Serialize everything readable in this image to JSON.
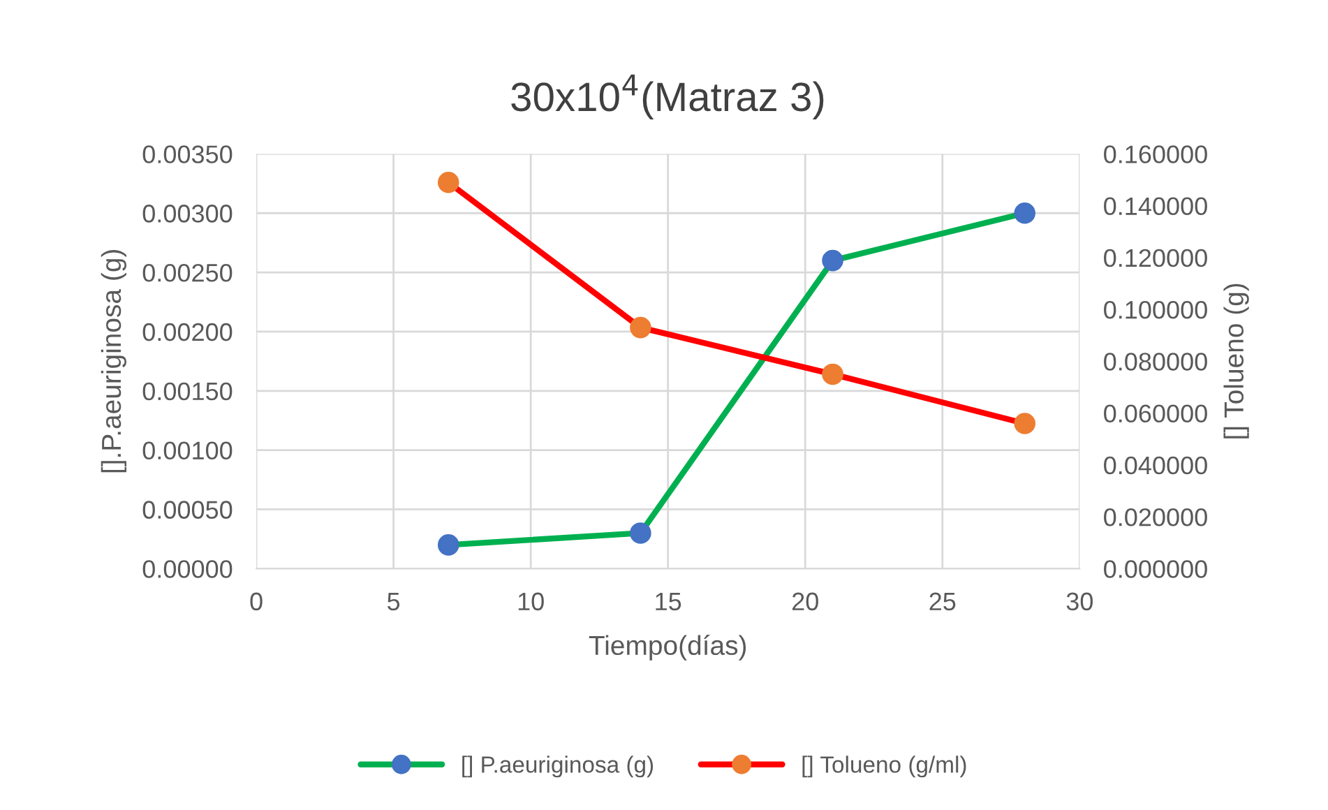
{
  "chart_data": {
    "type": "line",
    "title": "30x10$^{4}$(Matraz 3)",
    "xlabel": "Tiempo(días)",
    "ylabel": "[].P.aeuriginosa (g)",
    "y2label": "[] Tolueno (g)",
    "x": [
      7,
      14,
      21,
      28
    ],
    "series": [
      {
        "name": "[] P.aeuriginosa (g)",
        "color": "#00b050",
        "colors": [
          "#4472c4",
          "#4472c4",
          "#4472c4",
          "#4472c4"
        ],
        "values": [
          0.0002,
          0.0003,
          0.0026,
          0.003
        ]
      },
      {
        "name": "[] Tolueno (g/ml)",
        "color": "#ff0000",
        "colors": [
          "#ed7d31",
          "#ed7d31",
          "#ed7d31",
          "#ed7d31"
        ],
        "axis": "y2",
        "values": [
          0.149,
          0.093,
          0.075,
          0.056
        ]
      }
    ],
    "xlim": [
      0,
      30
    ],
    "xticks": [
      0,
      5,
      10,
      15,
      20,
      25,
      30
    ],
    "ylim": [
      0,
      0.0035
    ],
    "yticks": [
      {
        "value": 0,
        "label": "0.00000"
      },
      {
        "value": 0.0005,
        "label": "0.00050"
      },
      {
        "value": 0.001,
        "label": "0.00100"
      },
      {
        "value": 0.0015,
        "label": "0.00150"
      },
      {
        "value": 0.002,
        "label": "0.00200"
      },
      {
        "value": 0.0025,
        "label": "0.00250"
      },
      {
        "value": 0.003,
        "label": "0.00300"
      },
      {
        "value": 0.0035,
        "label": "0.00350"
      }
    ],
    "y2lim": [
      0,
      0.16
    ],
    "y2ticks": [
      {
        "value": 0,
        "label": "0.000000"
      },
      {
        "value": 0.02,
        "label": "0.020000"
      },
      {
        "value": 0.04,
        "label": "0.040000"
      },
      {
        "value": 0.06,
        "label": "0.060000"
      },
      {
        "value": 0.08,
        "label": "0.080000"
      },
      {
        "value": 0.1,
        "label": "0.100000"
      },
      {
        "value": 0.12,
        "label": "0.120000"
      },
      {
        "value": 0.14,
        "label": "0.140000"
      },
      {
        "value": 0.16,
        "label": "0.160000"
      }
    ],
    "grid": true,
    "legend": "bottom",
    "marker": "circle",
    "line_style": "solid"
  }
}
